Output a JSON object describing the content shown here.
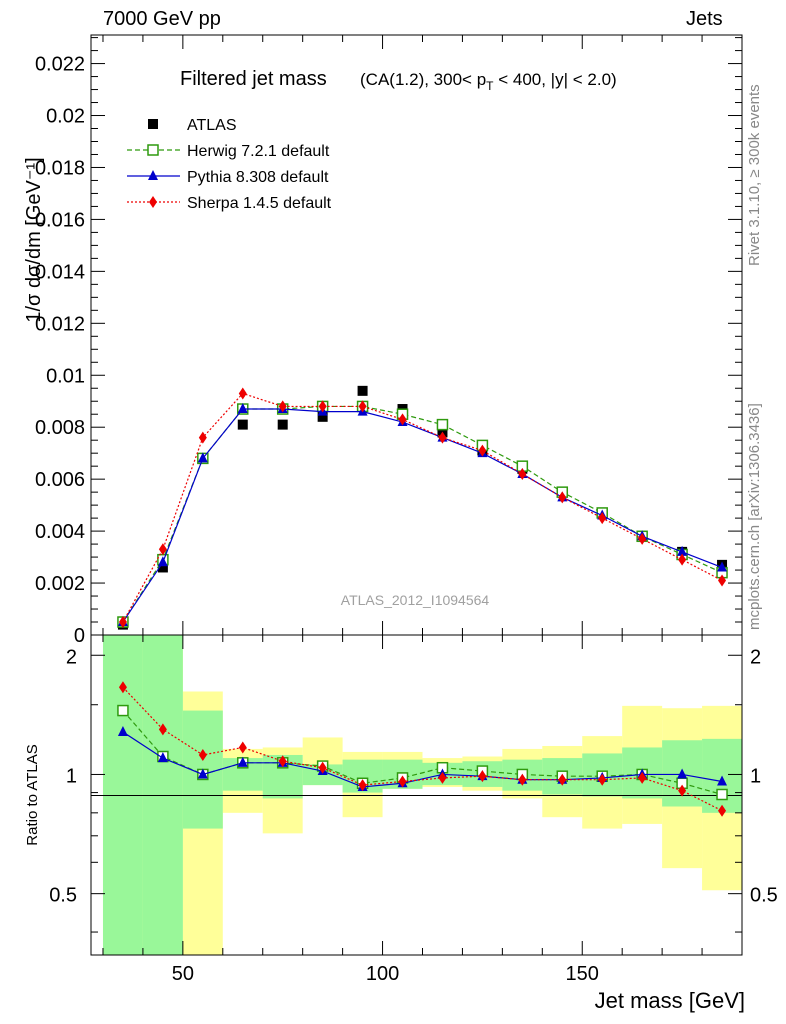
{
  "header": {
    "left": "7000 GeV pp",
    "right": "Jets"
  },
  "side_labels": {
    "rivet": "Rivet 3.1.10, ≥ 300k events",
    "mcplots": "mcplots.cern.ch [arXiv:1306.3436]"
  },
  "colors": {
    "atlas": "#000000",
    "herwig": "#2e9a0e",
    "pythia": "#0000cc",
    "sherpa": "#ee0000",
    "band_stat": "#99f799",
    "band_tot": "#ffff99"
  },
  "chart_data": [
    {
      "type": "line",
      "title": "Filtered jet mass",
      "subtitle": "(CA(1.2), 300< p_T < 400, |y| < 2.0)",
      "subtitle_parts": {
        "pre": "(CA(1.2), 300< p",
        "sub": "T",
        "post": " < 400, |y| < 2.0)"
      },
      "ylabel": "1/σ dσ/dm [GeV⁻¹]",
      "xlabel": "",
      "watermark": "ATLAS_2012_I1094564",
      "xlim": [
        27,
        190
      ],
      "ylim": [
        0,
        0.0231
      ],
      "yticks": [
        "0",
        "0.002",
        "0.004",
        "0.006",
        "0.008",
        "0.01",
        "0.012",
        "0.014",
        "0.016",
        "0.018",
        "0.02",
        "0.022"
      ],
      "x": [
        35,
        45,
        55,
        65,
        75,
        85,
        95,
        105,
        115,
        125,
        135,
        145,
        155,
        165,
        175,
        185
      ],
      "series": [
        {
          "name": "ATLAS",
          "marker": "square",
          "values": [
            0.0004,
            0.0026,
            0.0068,
            0.0081,
            0.0081,
            0.0084,
            0.0094,
            0.0087,
            0.0078,
            0.0071,
            0.0064,
            0.0055,
            0.0047,
            0.0038,
            0.0032,
            0.0027
          ]
        },
        {
          "name": "Herwig 7.2.1 default",
          "marker": "open-square",
          "values": [
            0.0005,
            0.0029,
            0.0068,
            0.0087,
            0.0087,
            0.0088,
            0.0088,
            0.0085,
            0.0081,
            0.0073,
            0.0065,
            0.0055,
            0.0047,
            0.0038,
            0.0031,
            0.0024
          ]
        },
        {
          "name": "Pythia 8.308 default",
          "marker": "triangle",
          "values": [
            0.0005,
            0.0028,
            0.0068,
            0.0087,
            0.0087,
            0.0086,
            0.0086,
            0.0082,
            0.0076,
            0.007,
            0.0062,
            0.0053,
            0.0046,
            0.0038,
            0.0032,
            0.0026
          ]
        },
        {
          "name": "Sherpa 1.4.5 default",
          "marker": "diamond",
          "values": [
            0.0005,
            0.0033,
            0.0076,
            0.0093,
            0.0088,
            0.0088,
            0.0088,
            0.0083,
            0.0076,
            0.0071,
            0.0062,
            0.0053,
            0.0045,
            0.0037,
            0.0029,
            0.0021
          ]
        }
      ]
    },
    {
      "type": "line",
      "title": "",
      "xlabel": "Jet mass [GeV]",
      "ylabel": "Ratio to ATLAS",
      "xlim": [
        27,
        190
      ],
      "ylim": [
        0.35,
        2.25
      ],
      "yticks": [
        "0.5",
        "1",
        "2"
      ],
      "ytick_values": [
        0.5,
        1,
        2
      ],
      "xticks": [
        "50",
        "100",
        "150"
      ],
      "xtick_values": [
        50,
        100,
        150
      ],
      "bin_edges": [
        30,
        40,
        50,
        60,
        70,
        80,
        90,
        100,
        110,
        120,
        130,
        140,
        150,
        160,
        170,
        180,
        190
      ],
      "band_stat": {
        "low": [
          0.35,
          0.35,
          0.73,
          0.91,
          0.87,
          0.94,
          0.9,
          0.92,
          0.94,
          0.93,
          0.91,
          0.89,
          0.88,
          0.87,
          0.83,
          0.8
        ],
        "high": [
          2.25,
          2.25,
          1.45,
          1.1,
          1.12,
          1.06,
          1.09,
          1.09,
          1.07,
          1.08,
          1.09,
          1.1,
          1.13,
          1.17,
          1.22,
          1.23
        ]
      },
      "band_tot": {
        "low": [
          0.35,
          0.35,
          0.35,
          0.8,
          0.71,
          0.94,
          0.78,
          0.92,
          0.93,
          0.91,
          0.87,
          0.78,
          0.73,
          0.75,
          0.58,
          0.51
        ],
        "high": [
          2.25,
          2.2,
          1.62,
          1.16,
          1.17,
          1.24,
          1.14,
          1.14,
          1.1,
          1.11,
          1.16,
          1.18,
          1.25,
          1.49,
          1.47,
          1.49
        ]
      },
      "x": [
        35,
        45,
        55,
        65,
        75,
        85,
        95,
        105,
        115,
        125,
        135,
        145,
        155,
        165,
        175,
        185
      ],
      "series": [
        {
          "name": "Herwig 7.2.1 default",
          "marker": "open-square",
          "values": [
            1.45,
            1.11,
            1.0,
            1.07,
            1.07,
            1.05,
            0.95,
            0.98,
            1.04,
            1.02,
            1.0,
            0.99,
            0.99,
            1.0,
            0.95,
            0.89
          ]
        },
        {
          "name": "Pythia 8.308 default",
          "marker": "triangle",
          "values": [
            1.28,
            1.1,
            1.0,
            1.07,
            1.07,
            1.02,
            0.93,
            0.95,
            1.0,
            0.99,
            0.97,
            0.97,
            0.98,
            1.0,
            1.0,
            0.96
          ]
        },
        {
          "name": "Sherpa 1.4.5 default",
          "marker": "diamond",
          "values": [
            1.66,
            1.3,
            1.12,
            1.17,
            1.08,
            1.04,
            0.94,
            0.96,
            0.98,
            0.99,
            0.97,
            0.97,
            0.97,
            0.98,
            0.91,
            0.81
          ]
        }
      ]
    }
  ]
}
